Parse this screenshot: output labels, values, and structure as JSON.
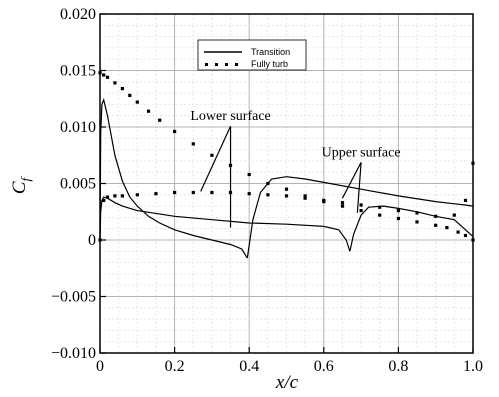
{
  "chart_data": {
    "type": "line",
    "title": "",
    "xlabel": "x/c",
    "ylabel": "C_f",
    "ylabel_main": "C",
    "ylabel_sub": "f",
    "xlim": [
      0,
      1.0
    ],
    "ylim": [
      -0.01,
      0.02
    ],
    "x_ticks": [
      {
        "value": 0,
        "label": "0"
      },
      {
        "value": 0.2,
        "label": "0.2"
      },
      {
        "value": 0.4,
        "label": "0.4"
      },
      {
        "value": 0.6,
        "label": "0.6"
      },
      {
        "value": 0.8,
        "label": "0.8"
      },
      {
        "value": 1.0,
        "label": "1.0"
      }
    ],
    "y_ticks": [
      {
        "value": 0.02,
        "label": "0.020"
      },
      {
        "value": 0.015,
        "label": "0.015"
      },
      {
        "value": 0.01,
        "label": "0.010"
      },
      {
        "value": 0.005,
        "label": "0.005"
      },
      {
        "value": 0,
        "label": "0"
      },
      {
        "value": -0.005,
        "label": "−0.005"
      },
      {
        "value": -0.01,
        "label": "−0.010"
      }
    ],
    "grid": true,
    "legend_position": "top-center",
    "legend": [
      {
        "label": "Transition",
        "style": "solid-line"
      },
      {
        "label": "Fully turb",
        "style": "square-markers"
      }
    ],
    "annotations": [
      {
        "text": "Lower surface",
        "x": 0.35,
        "y": 0.0106,
        "arrows_to": [
          [
            0.27,
            0.0043
          ],
          [
            0.35,
            0.0011
          ]
        ]
      },
      {
        "text": "Upper surface",
        "x": 0.7,
        "y": 0.0074,
        "arrows_to": [
          [
            0.65,
            0.0037
          ],
          [
            0.69,
            0.0024
          ]
        ]
      }
    ],
    "series": [
      {
        "label": "Transition",
        "style": "solid-line",
        "curves": [
          {
            "surface": "upper",
            "x": [
              0,
              0.002,
              0.005,
              0.01,
              0.02,
              0.04,
              0.06,
              0.08,
              0.1,
              0.13,
              0.16,
              0.2,
              0.25,
              0.3,
              0.35,
              0.38,
              0.395
            ],
            "y": [
              0,
              0.0095,
              0.012,
              0.0124,
              0.011,
              0.0075,
              0.0052,
              0.0038,
              0.003,
              0.0021,
              0.0015,
              0.0009,
              0.0004,
              0.0,
              -0.0004,
              -0.0008,
              -0.0016
            ]
          },
          {
            "surface": "upper",
            "x": [
              0.395,
              0.41,
              0.43,
              0.46,
              0.5,
              0.55,
              0.6,
              0.7,
              0.8,
              0.9,
              0.95,
              0.98,
              1.0
            ],
            "y": [
              -0.0016,
              0.0018,
              0.0042,
              0.0054,
              0.0056,
              0.0054,
              0.0051,
              0.0045,
              0.0039,
              0.0034,
              0.0032,
              0.0031,
              0.003
            ]
          },
          {
            "surface": "lower",
            "x": [
              0,
              0.002,
              0.005,
              0.01,
              0.02,
              0.04,
              0.06,
              0.1,
              0.2,
              0.3,
              0.4,
              0.5,
              0.6,
              0.64,
              0.66,
              0.67
            ],
            "y": [
              0,
              0.0025,
              0.0035,
              0.0038,
              0.0037,
              0.0033,
              0.003,
              0.0026,
              0.0021,
              0.0018,
              0.0015,
              0.0014,
              0.0012,
              0.0009,
              0.0,
              -0.001
            ]
          },
          {
            "surface": "lower",
            "x": [
              0.67,
              0.68,
              0.7,
              0.72,
              0.76,
              0.8,
              0.85,
              0.9,
              0.95,
              1.0
            ],
            "y": [
              -0.001,
              0.0005,
              0.0022,
              0.0029,
              0.003,
              0.0028,
              0.0025,
              0.0021,
              0.0018,
              0.0003
            ]
          }
        ]
      },
      {
        "label": "Fully turb",
        "style": "square-markers",
        "curves": [
          {
            "surface": "upper",
            "x": [
              0.0,
              0.01,
              0.02,
              0.04,
              0.06,
              0.08,
              0.1,
              0.13,
              0.16,
              0.2,
              0.25,
              0.3,
              0.35,
              0.4,
              0.45,
              0.5,
              0.55,
              0.6,
              0.65,
              0.7,
              0.75,
              0.8,
              0.85,
              0.9,
              0.93,
              0.96,
              0.98,
              1.0
            ],
            "y": [
              0.0148,
              0.0146,
              0.0144,
              0.0139,
              0.0134,
              0.0128,
              0.0122,
              0.0114,
              0.0106,
              0.0096,
              0.0085,
              0.0075,
              0.0066,
              0.0058,
              0.005,
              0.0045,
              0.0039,
              0.0034,
              0.003,
              0.0026,
              0.0022,
              0.0019,
              0.0016,
              0.0013,
              0.0011,
              0.0007,
              0.0004,
              0.0
            ]
          },
          {
            "surface": "lower",
            "x": [
              0.0,
              0.01,
              0.02,
              0.04,
              0.06,
              0.1,
              0.15,
              0.2,
              0.25,
              0.3,
              0.35,
              0.4,
              0.45,
              0.5,
              0.55,
              0.6,
              0.65,
              0.7,
              0.75,
              0.8,
              0.85,
              0.9,
              0.95,
              0.98,
              1.0
            ],
            "y": [
              0.0,
              0.0035,
              0.0038,
              0.0039,
              0.0039,
              0.004,
              0.0041,
              0.0042,
              0.0042,
              0.0042,
              0.0042,
              0.0041,
              0.004,
              0.0039,
              0.0037,
              0.0035,
              0.0033,
              0.0031,
              0.0029,
              0.0026,
              0.0024,
              0.0021,
              0.0022,
              0.0035,
              0.0068
            ]
          }
        ]
      }
    ]
  }
}
